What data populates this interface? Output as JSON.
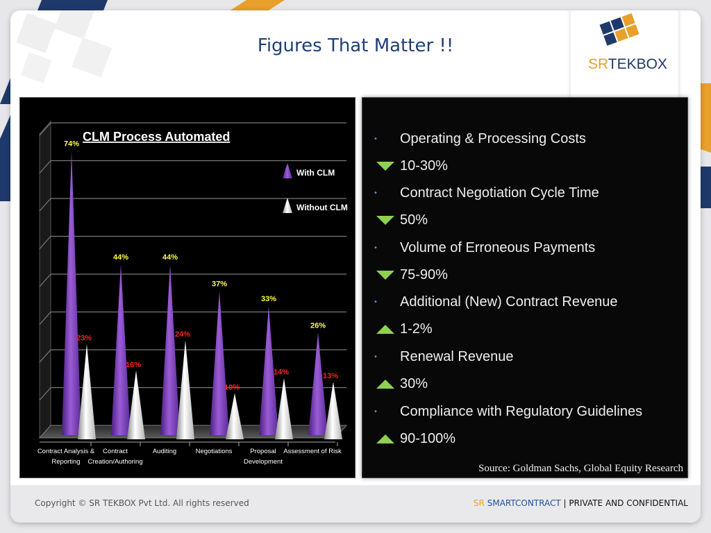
{
  "slide": {
    "title": "Figures That Matter !!"
  },
  "logo": {
    "brand_prefix": "SR",
    "brand_suffix": "TEKBOX"
  },
  "colors": {
    "title_blue": "#1f3f7a",
    "accent_orange": "#e8a02b",
    "logo_navy": "#1f3a6a",
    "with_clm": "#7b3fb5",
    "without_clm": "#e6e6e6",
    "with_label": "#ffff3a",
    "without_label": "#ff2020",
    "arrow_green": "#8fd14f"
  },
  "chart_data": {
    "type": "bar",
    "title": "CLM Process Automated",
    "categories": [
      [
        "Contract Analysis &",
        "Reporting"
      ],
      [
        "Contract",
        "Creation/Authoring"
      ],
      [
        "Auditing"
      ],
      [
        "Negotiations"
      ],
      [
        "Proposal",
        "Development"
      ],
      [
        "Assessment of Risk"
      ]
    ],
    "series": [
      {
        "name": "With CLM",
        "values": [
          74,
          44,
          44,
          37,
          33,
          26
        ],
        "labels": [
          "74%",
          "44%",
          "44%",
          "37%",
          "33%",
          "26%"
        ]
      },
      {
        "name": "Without CLM",
        "values": [
          23,
          16,
          24,
          10,
          14,
          13
        ],
        "labels": [
          "23%",
          "16%",
          "24%",
          "10%",
          "14%",
          "13%"
        ]
      }
    ],
    "ylim": [
      0,
      80
    ],
    "grid": true,
    "legend_position": "top-right",
    "shape": "3d cone"
  },
  "stats": {
    "items": [
      {
        "label": "Operating & Processing Costs",
        "change": "10-30%",
        "direction": "down"
      },
      {
        "label": "Contract Negotiation Cycle Time",
        "change": "50%",
        "direction": "down"
      },
      {
        "label": "Volume of Erroneous Payments",
        "change": "75-90%",
        "direction": "down"
      },
      {
        "label": "Additional (New) Contract Revenue",
        "change": "1-2%",
        "direction": "up"
      },
      {
        "label": "Renewal Revenue",
        "change": "30%",
        "direction": "up"
      },
      {
        "label": "Compliance with Regulatory Guidelines",
        "change": "90-100%",
        "direction": "up"
      }
    ],
    "source": "Source:  Goldman Sachs, Global Equity Research"
  },
  "footer": {
    "copyright": "Copyright © SR TEKBOX Pvt Ltd. All rights reserved",
    "brand_sr": "SR",
    "brand_product": "SMARTCONTRACT",
    "separator": "|",
    "confidential": "PRIVATE AND CONFIDENTIAL"
  }
}
